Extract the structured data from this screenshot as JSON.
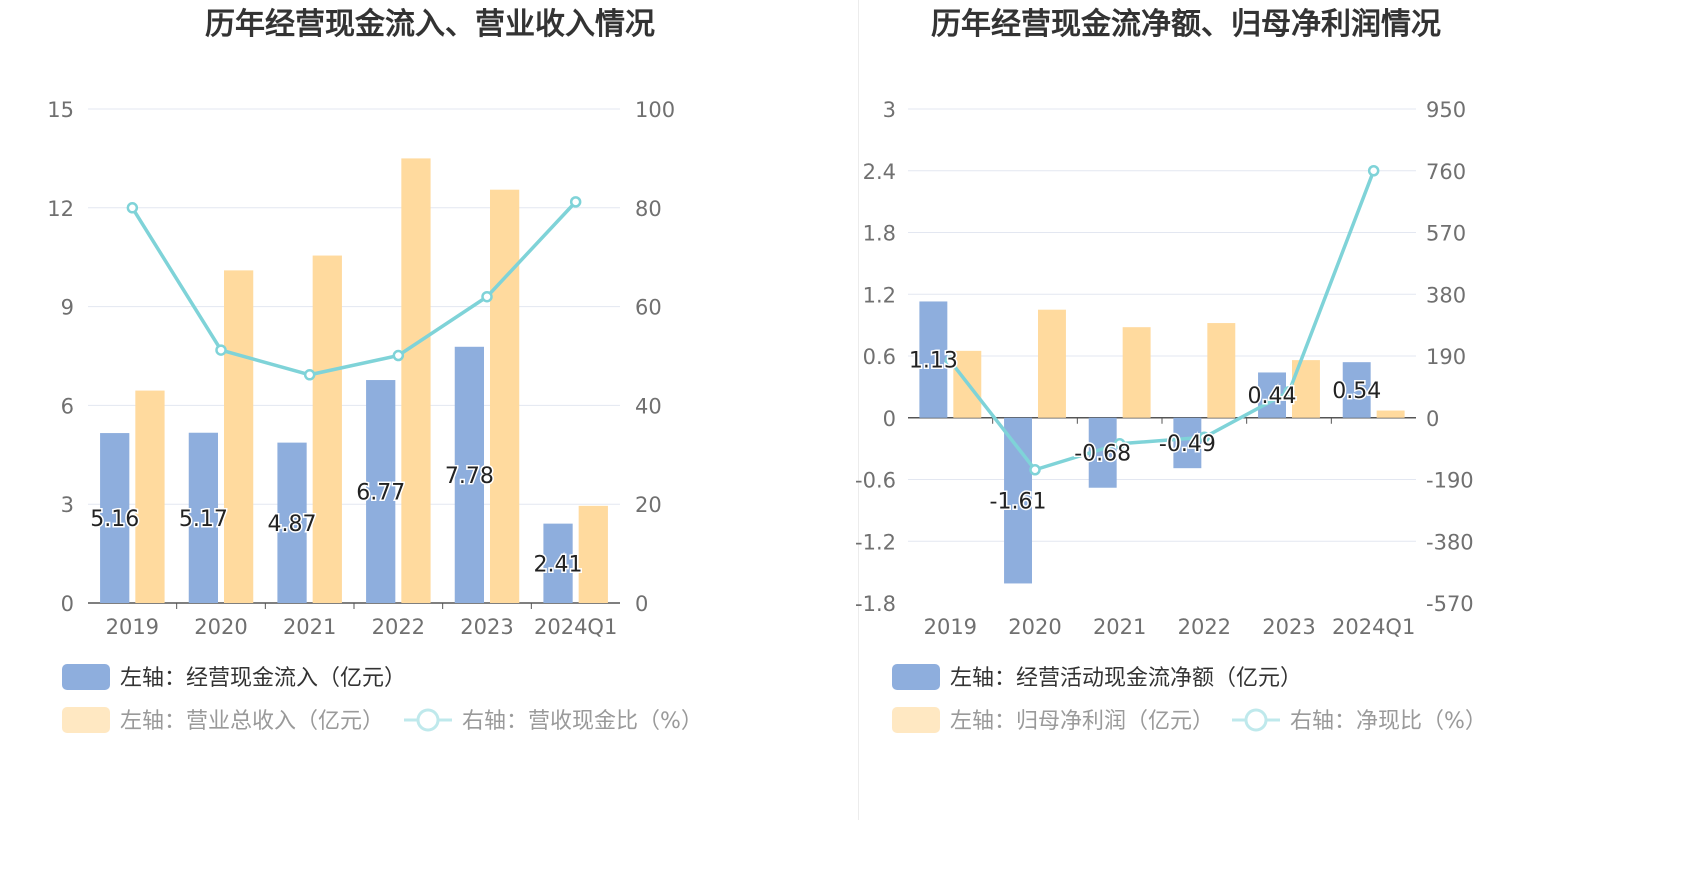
{
  "chart_data": [
    {
      "type": "bar",
      "title": "历年经营现金流入、营业收入情况",
      "categories": [
        "2019",
        "2020",
        "2021",
        "2022",
        "2023",
        "2024Q1"
      ],
      "left_axis": {
        "ticks": [
          "0",
          "3",
          "6",
          "9",
          "12",
          "15"
        ],
        "ylim": [
          0,
          15
        ]
      },
      "right_axis": {
        "ticks": [
          "0",
          "20",
          "40",
          "60",
          "80",
          "100"
        ],
        "ylim": [
          0,
          100
        ]
      },
      "grid": true,
      "legend_placement": "bottom",
      "series": [
        {
          "name": "左轴：经营现金流入（亿元）",
          "type": "bar",
          "axis": "left",
          "color": "#8eaedd",
          "values": [
            5.16,
            5.17,
            4.87,
            6.77,
            7.78,
            2.41
          ],
          "labels": [
            "5.16",
            "5.17",
            "4.87",
            "6.77",
            "7.78",
            "2.41"
          ]
        },
        {
          "name": "左轴：营业总收入（亿元）",
          "type": "bar",
          "axis": "left",
          "color": "#ffda9e",
          "values": [
            6.45,
            10.1,
            10.55,
            13.5,
            12.55,
            2.95
          ]
        },
        {
          "name": "右轴：营收现金比（%）",
          "type": "line",
          "axis": "right",
          "color": "#7fd3d8",
          "values": [
            80.0,
            51.2,
            46.2,
            50.1,
            62.0,
            81.2
          ]
        }
      ]
    },
    {
      "type": "bar",
      "title": "历年经营现金流净额、归母净利润情况",
      "categories": [
        "2019",
        "2020",
        "2021",
        "2022",
        "2023",
        "2024Q1"
      ],
      "left_axis": {
        "ticks": [
          "-1.8",
          "-1.2",
          "-0.6",
          "0",
          "0.6",
          "1.2",
          "1.8",
          "2.4",
          "3"
        ],
        "ylim": [
          -1.8,
          3
        ]
      },
      "right_axis": {
        "ticks": [
          "-570",
          "-380",
          "-190",
          "0",
          "190",
          "380",
          "570",
          "760",
          "950"
        ],
        "ylim": [
          -570,
          950
        ]
      },
      "grid": true,
      "legend_placement": "bottom",
      "series": [
        {
          "name": "左轴：经营活动现金流净额（亿元）",
          "type": "bar",
          "axis": "left",
          "color": "#8eaedd",
          "values": [
            1.13,
            -1.61,
            -0.68,
            -0.49,
            0.44,
            0.54
          ],
          "labels": [
            "1.13",
            "-1.61",
            "-0.68",
            "-0.49",
            "0.44",
            "0.54"
          ]
        },
        {
          "name": "左轴：归母净利润（亿元）",
          "type": "bar",
          "axis": "left",
          "color": "#ffda9e",
          "values": [
            0.65,
            1.05,
            0.88,
            0.92,
            0.56,
            0.07
          ]
        },
        {
          "name": "右轴：净现比（%）",
          "type": "line",
          "axis": "right",
          "color": "#7fd3d8",
          "values": [
            174,
            -160,
            -80,
            -60,
            80,
            760
          ]
        }
      ]
    }
  ]
}
